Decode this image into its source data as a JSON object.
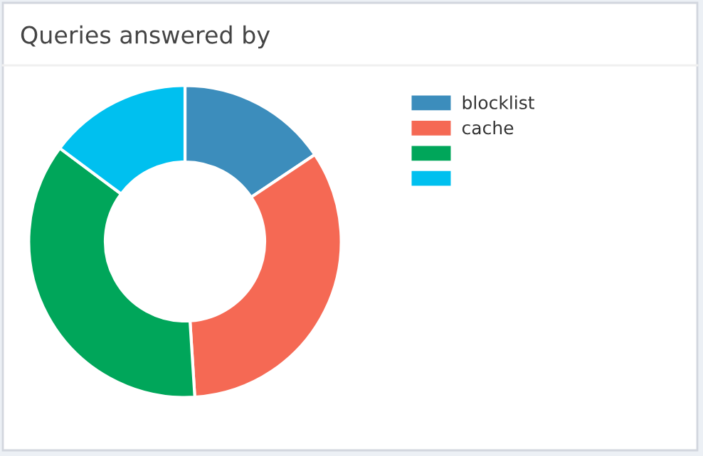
{
  "chart_data": {
    "type": "donut",
    "title": "Queries answered by",
    "categories": [
      "blocklist",
      "cache",
      null,
      null
    ],
    "values": [
      15.6,
      33.4,
      36.2,
      14.8
    ],
    "colors": [
      "#3c8dbc",
      "#f56954",
      "#00a65a",
      "#00c0ef"
    ],
    "legend": "top right"
  }
}
